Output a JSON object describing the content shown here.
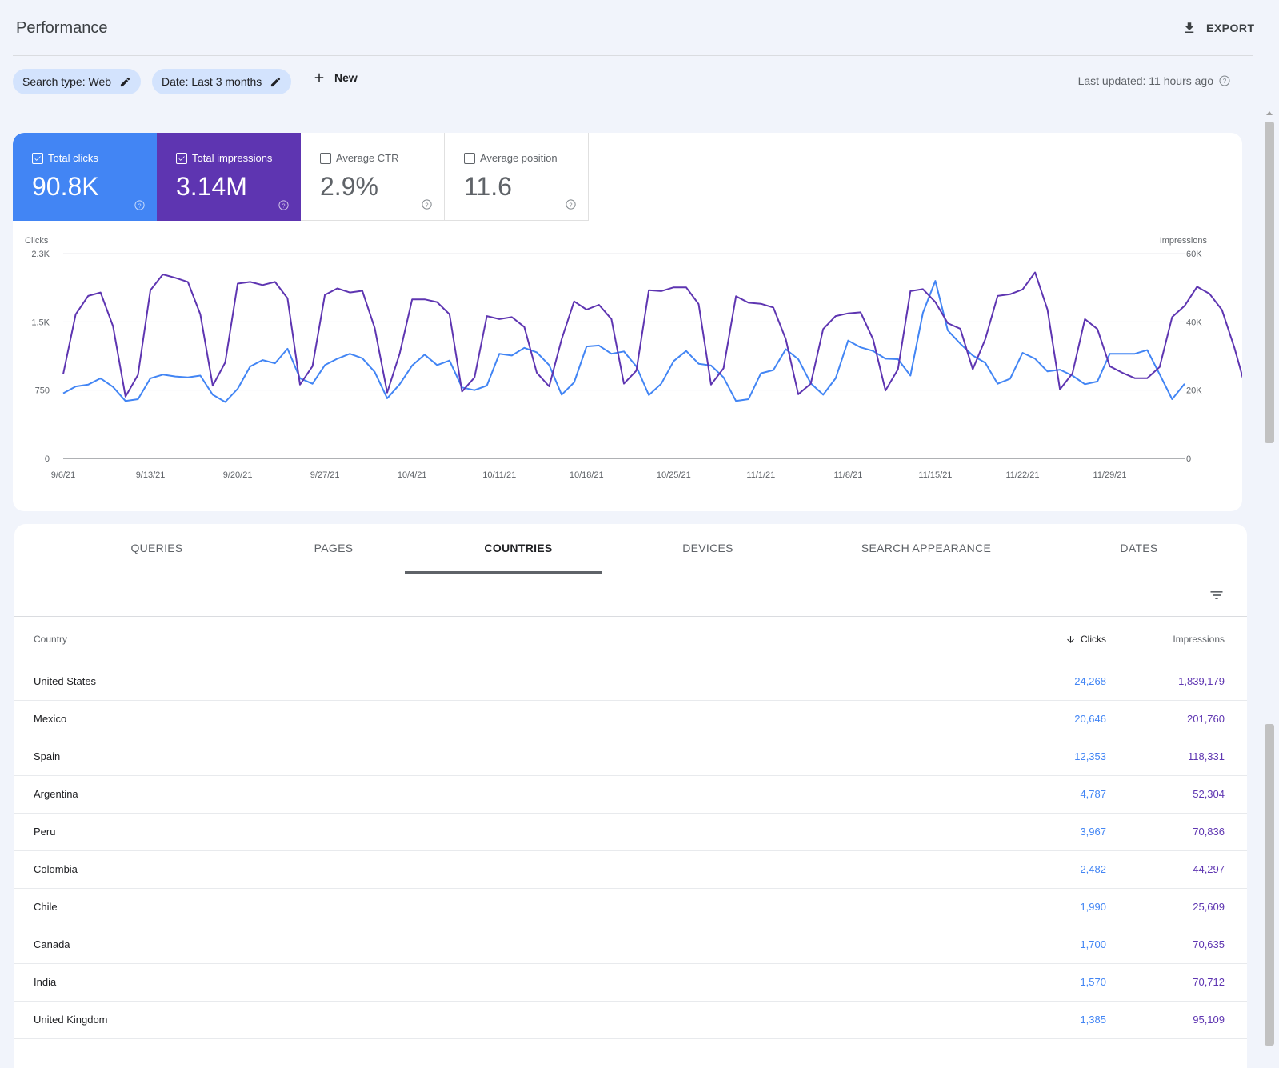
{
  "header": {
    "title": "Performance",
    "export_label": "EXPORT"
  },
  "filters": {
    "search_type": "Search type: Web",
    "date": "Date: Last 3 months",
    "new_label": "New",
    "last_updated": "Last updated: 11 hours ago"
  },
  "metrics": [
    {
      "label": "Total clicks",
      "value": "90.8K",
      "checked": true
    },
    {
      "label": "Total impressions",
      "value": "3.14M",
      "checked": true
    },
    {
      "label": "Average CTR",
      "value": "2.9%",
      "checked": false
    },
    {
      "label": "Average position",
      "value": "11.6",
      "checked": false
    }
  ],
  "colors": {
    "clicks": "#4285f4",
    "impressions": "#5e35b1",
    "background": "#f1f4fb"
  },
  "chart_data": {
    "type": "line",
    "left_axis_label": "Clicks",
    "right_axis_label": "Impressions",
    "left_ticks": [
      "0",
      "750",
      "1.5K",
      "2.3K"
    ],
    "right_ticks": [
      "0",
      "20K",
      "40K",
      "60K"
    ],
    "ylim_left": [
      0,
      2250
    ],
    "ylim_right": [
      0,
      60000
    ],
    "x_tick_labels": [
      "9/6/21",
      "9/13/21",
      "9/20/21",
      "9/27/21",
      "10/4/21",
      "10/11/21",
      "10/18/21",
      "10/25/21",
      "11/1/21",
      "11/8/21",
      "11/15/21",
      "11/22/21",
      "11/29/21"
    ],
    "series": [
      {
        "name": "Clicks",
        "values": [
          715,
          790,
          810,
          880,
          785,
          630,
          650,
          880,
          920,
          900,
          890,
          910,
          700,
          620,
          765,
          1010,
          1080,
          1045,
          1205,
          880,
          820,
          1025,
          1095,
          1150,
          1100,
          950,
          660,
          815,
          1020,
          1140,
          1025,
          1075,
          780,
          750,
          800,
          1150,
          1130,
          1215,
          1165,
          1025,
          700,
          835,
          1230,
          1240,
          1150,
          1175,
          1010,
          695,
          820,
          1070,
          1180,
          1040,
          1020,
          890,
          630,
          650,
          935,
          970,
          1200,
          1090,
          825,
          700,
          880,
          1295,
          1220,
          1180,
          1095,
          1090,
          910,
          1600,
          1950,
          1405,
          1260,
          1130,
          1050,
          820,
          875,
          1160,
          1095,
          955,
          975,
          910,
          815,
          845,
          1150,
          1150,
          1150,
          1190,
          925,
          650,
          820
        ]
      },
      {
        "name": "Impressions",
        "values": [
          24700,
          42200,
          47600,
          48600,
          38700,
          18100,
          24500,
          49300,
          53900,
          52900,
          51700,
          42200,
          21300,
          28100,
          51200,
          51700,
          50800,
          51700,
          46900,
          21600,
          27000,
          47900,
          49800,
          48600,
          49100,
          38200,
          19300,
          30700,
          46600,
          46600,
          45800,
          42200,
          19600,
          23700,
          41700,
          40800,
          41400,
          38500,
          25100,
          21100,
          34900,
          46000,
          43600,
          45000,
          40800,
          21900,
          25700,
          49300,
          49000,
          50100,
          50100,
          45200,
          21600,
          26400,
          47500,
          45600,
          45300,
          44200,
          34900,
          18800,
          21900,
          37900,
          41700,
          42500,
          42800,
          34900,
          19900,
          26100,
          49000,
          49600,
          45800,
          39600,
          38000,
          26100,
          34900,
          47600,
          48100,
          49500,
          54500,
          43600,
          20200,
          24900,
          40800,
          37900,
          27000,
          25100,
          23500,
          23500,
          26800,
          41400,
          44700,
          50300,
          48200,
          43500,
          32400,
          19300,
          24400
        ]
      }
    ]
  },
  "tabs": [
    "QUERIES",
    "PAGES",
    "COUNTRIES",
    "DEVICES",
    "SEARCH APPEARANCE",
    "DATES"
  ],
  "active_tab": "COUNTRIES",
  "table": {
    "headers": {
      "country": "Country",
      "clicks": "Clicks",
      "impressions": "Impressions"
    },
    "rows": [
      {
        "country": "United States",
        "clicks": "24,268",
        "impressions": "1,839,179"
      },
      {
        "country": "Mexico",
        "clicks": "20,646",
        "impressions": "201,760"
      },
      {
        "country": "Spain",
        "clicks": "12,353",
        "impressions": "118,331"
      },
      {
        "country": "Argentina",
        "clicks": "4,787",
        "impressions": "52,304"
      },
      {
        "country": "Peru",
        "clicks": "3,967",
        "impressions": "70,836"
      },
      {
        "country": "Colombia",
        "clicks": "2,482",
        "impressions": "44,297"
      },
      {
        "country": "Chile",
        "clicks": "1,990",
        "impressions": "25,609"
      },
      {
        "country": "Canada",
        "clicks": "1,700",
        "impressions": "70,635"
      },
      {
        "country": "India",
        "clicks": "1,570",
        "impressions": "70,712"
      },
      {
        "country": "United Kingdom",
        "clicks": "1,385",
        "impressions": "95,109"
      }
    ]
  }
}
